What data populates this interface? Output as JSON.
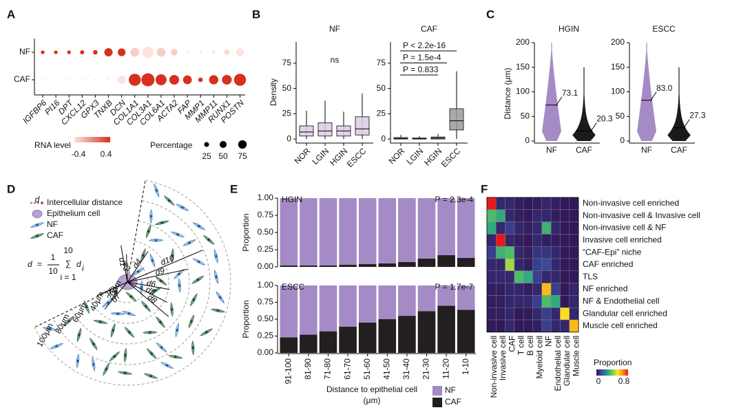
{
  "panel_labels": [
    "A",
    "B",
    "C",
    "D",
    "E",
    "F"
  ],
  "chart_data": [
    {
      "type": "dot",
      "categories": [
        "IGFBP6",
        "PI16",
        "DPT",
        "CXCL12",
        "GPX3",
        "TNXB",
        "DCN",
        "COL1A1",
        "COL3A1",
        "COL6A1",
        "ACTA2",
        "FAP",
        "MMP1",
        "MMP11",
        "RUNX1",
        "POSTN"
      ],
      "series": [
        {
          "name": "NF",
          "rna_level": [
            0.4,
            0.4,
            0.4,
            0.4,
            0.4,
            0.45,
            0.4,
            -0.3,
            -0.45,
            -0.3,
            -0.3,
            -0.5,
            -0.5,
            -0.5,
            -0.35,
            -0.4
          ],
          "percentage": [
            8,
            8,
            8,
            10,
            12,
            40,
            35,
            45,
            75,
            45,
            25,
            3,
            2,
            6,
            18,
            35
          ]
        },
        {
          "name": "CAF",
          "rna_level": [
            -0.5,
            -0.5,
            -0.5,
            -0.5,
            -0.5,
            -0.5,
            -0.4,
            0.4,
            0.45,
            0.4,
            0.4,
            0.4,
            0.4,
            0.4,
            0.4,
            0.45
          ],
          "percentage": [
            2,
            2,
            2,
            2,
            2,
            2,
            40,
            85,
            100,
            70,
            55,
            45,
            12,
            50,
            55,
            85
          ]
        }
      ],
      "color_legend": {
        "title": "RNA level",
        "ticks": [
          -0.4,
          0.4
        ],
        "colors": [
          "#fde3dc",
          "#d7301f"
        ]
      },
      "size_legend": {
        "title": "Percentage",
        "values": [
          25,
          50,
          75
        ]
      }
    },
    {
      "type": "box",
      "ylabel": "Density",
      "ylim": [
        -4,
        96
      ],
      "yticks": [
        0,
        25,
        50,
        75
      ],
      "panels": [
        {
          "title": "NF",
          "categories": [
            "NOR",
            "LGIN",
            "HGIN",
            "ESCC"
          ],
          "color": "#dccbe9",
          "low": [
            0,
            0,
            0,
            0
          ],
          "q1": [
            3,
            3,
            3,
            4
          ],
          "median": [
            7,
            8,
            8,
            10
          ],
          "q3": [
            13,
            16,
            13,
            22
          ],
          "high": [
            28,
            38,
            27,
            45
          ],
          "annotations": [
            "ns"
          ]
        },
        {
          "title": "CAF",
          "categories": [
            "NOR",
            "LGIN",
            "HGIN",
            "ESCC"
          ],
          "color": "#9a9a9a",
          "low": [
            0,
            0,
            0,
            0
          ],
          "q1": [
            0,
            0,
            0,
            9
          ],
          "median": [
            0.5,
            0.3,
            1,
            18
          ],
          "q3": [
            1.5,
            1,
            2,
            30
          ],
          "high": [
            4,
            3,
            5,
            67
          ],
          "annotations": [
            "P < 2.2e-16",
            "P = 1.5e-4",
            "P = 0.833"
          ]
        }
      ]
    },
    {
      "type": "violin",
      "ylabel": "Distance (μm)",
      "ylim": [
        0,
        200
      ],
      "yticks": [
        0,
        50,
        100,
        150,
        200
      ],
      "categories": [
        "NF",
        "CAF"
      ],
      "colors": [
        "#a58bc6",
        "#1a1a1a"
      ],
      "panels": [
        {
          "title": "HGIN",
          "max": [
            200,
            150
          ],
          "medians": [
            73.1,
            20.3
          ],
          "median_labels": [
            "73.1",
            "20.3"
          ]
        },
        {
          "title": "ESCC",
          "max": [
            200,
            150
          ],
          "medians": [
            83,
            27.3
          ],
          "median_labels": [
            "83.0",
            "27.3"
          ]
        }
      ]
    },
    {
      "type": "stacked_bar",
      "ylabel": "Proportion",
      "xlabel": [
        "Distance to epithelial cell",
        "(μm)"
      ],
      "categories": [
        "91-100",
        "81-90",
        "71-80",
        "61-70",
        "51-60",
        "41-50",
        "31-40",
        "21-30",
        "11-20",
        "1-10"
      ],
      "ylim": [
        0,
        1
      ],
      "yticks": [
        {
          "value": 0,
          "label": "0.00"
        },
        {
          "value": 0.25,
          "label": "0.25"
        },
        {
          "value": 0.5,
          "label": "0.50"
        },
        {
          "value": 0.75,
          "label": "0.75"
        },
        {
          "value": 1,
          "label": "1.00"
        }
      ],
      "panels": [
        {
          "title": "HGIN",
          "annotation": "P = 2.3e-4",
          "series": [
            {
              "name": "CAF",
              "color": "#231f20",
              "values": [
                0.02,
                0.02,
                0.02,
                0.03,
                0.04,
                0.05,
                0.07,
                0.12,
                0.17,
                0.13
              ]
            },
            {
              "name": "NF",
              "color": "#a58bc6",
              "values": [
                0.98,
                0.98,
                0.98,
                0.97,
                0.96,
                0.95,
                0.93,
                0.88,
                0.83,
                0.87
              ]
            }
          ]
        },
        {
          "title": "ESCC",
          "annotation": "P = 1.7e-7",
          "series": [
            {
              "name": "CAF",
              "color": "#231f20",
              "values": [
                0.23,
                0.27,
                0.32,
                0.39,
                0.45,
                0.5,
                0.55,
                0.62,
                0.7,
                0.64
              ]
            },
            {
              "name": "NF",
              "color": "#a58bc6",
              "values": [
                0.77,
                0.73,
                0.68,
                0.61,
                0.55,
                0.5,
                0.45,
                0.38,
                0.3,
                0.36
              ]
            }
          ]
        }
      ]
    },
    {
      "type": "heatmap",
      "rows": [
        "Non-invasive cell enriched",
        "Non-invasive cell & Invasive cell",
        "Non-invasive cell & NF",
        "Invasive cell enriched",
        "“CAF-Epi” niche",
        "CAF enriched",
        "TLS",
        "NF enriched",
        "NF & Endothelial cell",
        "Glandular cell enriched",
        "Muscle cell enriched"
      ],
      "columns": [
        "Non-invasive cell",
        "Invasive cell",
        "CAF",
        "T cell",
        "B cell",
        "Myeloid cell",
        "NF",
        "Endothelial cell",
        "Glandular cell",
        "Muscle cell"
      ],
      "values": [
        [
          0.8,
          0.05,
          0.05,
          0.03,
          0.02,
          0.03,
          0.05,
          0.03,
          0.02,
          0.02
        ],
        [
          0.35,
          0.3,
          0.05,
          0.03,
          0.02,
          0.05,
          0.05,
          0.03,
          0.02,
          0.02
        ],
        [
          0.3,
          0.05,
          0.1,
          0.05,
          0.03,
          0.05,
          0.32,
          0.05,
          0.02,
          0.02
        ],
        [
          0.05,
          0.8,
          0.05,
          0.03,
          0.02,
          0.05,
          0.03,
          0.03,
          0.02,
          0.02
        ],
        [
          0.1,
          0.32,
          0.35,
          0.05,
          0.03,
          0.08,
          0.08,
          0.05,
          0.02,
          0.02
        ],
        [
          0.05,
          0.05,
          0.45,
          0.05,
          0.03,
          0.1,
          0.12,
          0.05,
          0.02,
          0.02
        ],
        [
          0.05,
          0.05,
          0.05,
          0.35,
          0.3,
          0.1,
          0.05,
          0.05,
          0.02,
          0.02
        ],
        [
          0.03,
          0.03,
          0.05,
          0.05,
          0.03,
          0.05,
          0.6,
          0.1,
          0.02,
          0.05
        ],
        [
          0.03,
          0.03,
          0.05,
          0.05,
          0.05,
          0.1,
          0.35,
          0.3,
          0.02,
          0.05
        ],
        [
          0.03,
          0.03,
          0.05,
          0.02,
          0.02,
          0.05,
          0.1,
          0.05,
          0.55,
          0.05
        ],
        [
          0.02,
          0.02,
          0.05,
          0.02,
          0.02,
          0.03,
          0.1,
          0.05,
          0.05,
          0.6
        ]
      ],
      "colorbar": {
        "title": "Proportion",
        "ticks": [
          0,
          0.8
        ]
      },
      "colors": [
        "#30104e",
        "#3b4ea0",
        "#1f9e89",
        "#6ccd5a",
        "#fde725",
        "#f98e09",
        "#e31a1c"
      ]
    }
  ],
  "diagram": {
    "legend": [
      "Intercellular distance",
      "Epithelium cell",
      "NF",
      "CAF"
    ],
    "legend_arrow_label": "d",
    "formula": {
      "lhs": "d",
      "eq": "=",
      "num": "1",
      "den": "10",
      "upper": "10",
      "sum": "∑",
      "lower": "i = 1",
      "term": "d",
      "sub": "i"
    },
    "distance_labels": [
      "d1",
      "d2",
      "d3",
      "d4",
      "d5",
      "d6",
      "d7",
      "d8",
      "d9",
      "d10"
    ],
    "ring_labels": [
      "20μm",
      "40μm",
      "60μm",
      "80μm",
      "100μm"
    ]
  }
}
